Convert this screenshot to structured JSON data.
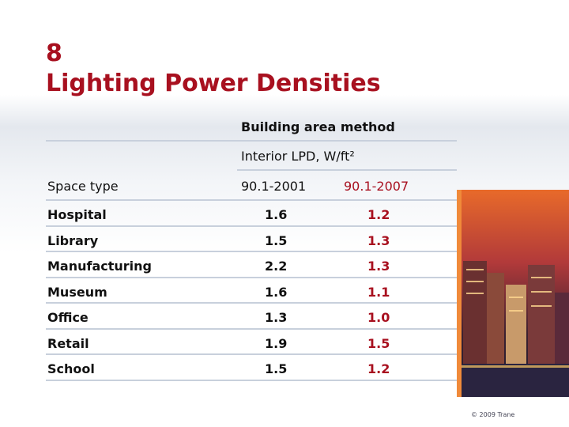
{
  "title": {
    "number": "8",
    "text": "Lighting Power Densities"
  },
  "table": {
    "group_header": "Building area method",
    "sub_header": "Interior LPD, W/ft²",
    "columns": [
      "Space type",
      "90.1-2001",
      "90.1-2007"
    ],
    "rows": [
      [
        "Hospital",
        "1.6",
        "1.2"
      ],
      [
        "Library",
        "1.5",
        "1.3"
      ],
      [
        "Manufacturing",
        "2.2",
        "1.3"
      ],
      [
        "Museum",
        "1.6",
        "1.1"
      ],
      [
        "Office",
        "1.3",
        "1.0"
      ],
      [
        "Retail",
        "1.9",
        "1.5"
      ],
      [
        "School",
        "1.5",
        "1.2"
      ]
    ]
  },
  "footer": "© 2009 Trane"
}
